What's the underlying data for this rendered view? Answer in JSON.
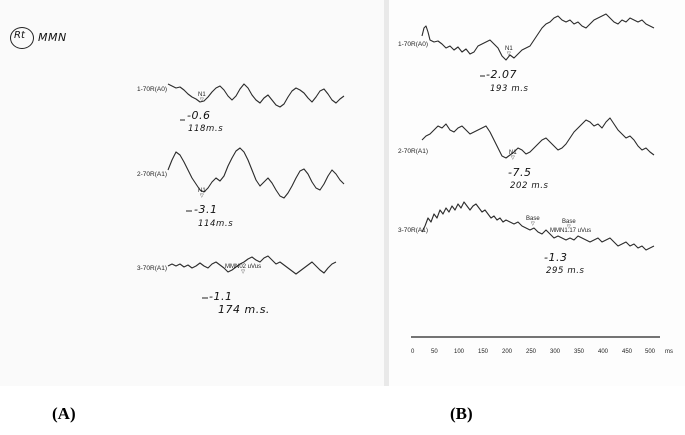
{
  "panels": [
    {
      "caption": "(A)",
      "header_circle": "Rt",
      "header_text": "MMN",
      "traces": [
        {
          "channel": "1-70R(A0)",
          "peak_label": "N1",
          "value": "-0.6",
          "latency": "118m.s"
        },
        {
          "channel": "2-70R(A1)",
          "peak_label": "N1",
          "value": "-3.1",
          "latency": "114m.s"
        },
        {
          "channel": "3-70R(A1)",
          "peak_label": "MMN02 uVus",
          "value": "-1.1",
          "latency": "174 m.s."
        }
      ]
    },
    {
      "caption": "(B)",
      "traces": [
        {
          "channel": "1-70R(A0)",
          "peak_label": "N1",
          "value": "-2.07",
          "latency": "193 m.s"
        },
        {
          "channel": "2-70R(A1)",
          "peak_label": "N1",
          "value": "-7.5",
          "latency": "202 m.s"
        },
        {
          "channel": "3-70R(A1)",
          "peak_label": "Base",
          "peak_label_2": "Base",
          "peak_label_3": "MMN1.17 uVus",
          "value": "-1.3",
          "latency": "295 m.s"
        }
      ],
      "axis": {
        "ticks": [
          "0",
          "50",
          "100",
          "150",
          "200",
          "250",
          "300",
          "350",
          "400",
          "450",
          "500"
        ],
        "unit": "ms"
      }
    }
  ]
}
